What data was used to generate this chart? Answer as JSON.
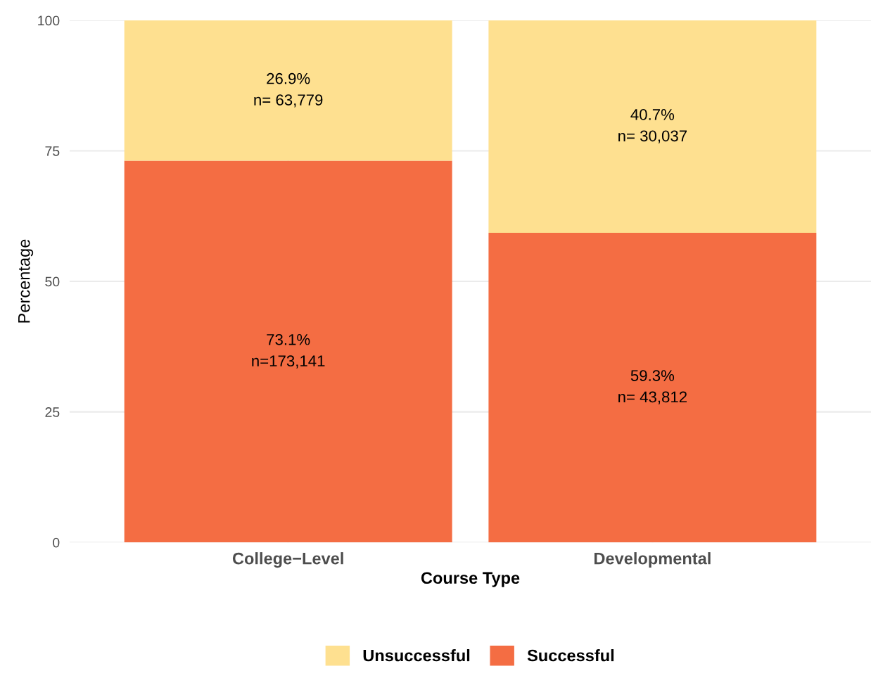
{
  "chart_data": {
    "type": "bar",
    "stacked": true,
    "ylabel": "Percentage",
    "xlabel": "Course Type",
    "categories": [
      "College−Level",
      "Developmental"
    ],
    "series": [
      {
        "name": "Successful",
        "color": "#f46d43",
        "values": [
          73.1,
          59.3
        ],
        "value_labels": [
          "73.1%\nn=173,141",
          "59.3%\nn= 43,812"
        ]
      },
      {
        "name": "Unsuccessful",
        "color": "#fee090",
        "values": [
          26.9,
          40.7
        ],
        "value_labels": [
          "26.9%\nn= 63,779",
          "40.7%\nn= 30,037"
        ]
      }
    ],
    "ylim": [
      0,
      100
    ],
    "yticks": [
      0,
      25,
      50,
      75,
      100
    ],
    "grid": true,
    "legend": "bottom"
  }
}
